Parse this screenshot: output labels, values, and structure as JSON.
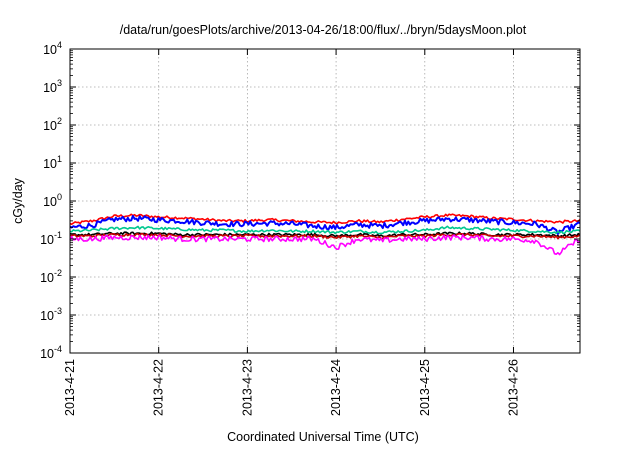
{
  "chart_data": {
    "type": "line",
    "title": "/data/run/goesPlots/archive/2013-04-26/18:00/flux/../bryn/5daysMoon.plot",
    "xlabel": "Coordinated Universal Time (UTC)",
    "ylabel": "cGy/day",
    "y_scale": "log",
    "ylim": [
      0.0001,
      10000
    ],
    "xlim": [
      "2013-04-21",
      "2013-04-26 18:00"
    ],
    "x_ticks": [
      "2013-4-21",
      "2013-4-22",
      "2013-4-23",
      "2013-4-24",
      "2013-4-25",
      "2013-4-26"
    ],
    "y_ticks": [
      {
        "base": "10",
        "exp": "-4",
        "value": 0.0001
      },
      {
        "base": "10",
        "exp": "-3",
        "value": 0.001
      },
      {
        "base": "10",
        "exp": "-2",
        "value": 0.01
      },
      {
        "base": "10",
        "exp": "-1",
        "value": 0.1
      },
      {
        "base": "10",
        "exp": "0",
        "value": 1
      },
      {
        "base": "10",
        "exp": "1",
        "value": 10
      },
      {
        "base": "10",
        "exp": "2",
        "value": 100
      },
      {
        "base": "10",
        "exp": "3",
        "value": 1000
      },
      {
        "base": "10",
        "exp": "4",
        "value": 10000
      }
    ],
    "grid": true,
    "legend": "none",
    "x": [
      "2013-04-21 00:00",
      "2013-04-21 06:00",
      "2013-04-21 12:00",
      "2013-04-21 18:00",
      "2013-04-22 00:00",
      "2013-04-22 06:00",
      "2013-04-22 12:00",
      "2013-04-22 18:00",
      "2013-04-23 00:00",
      "2013-04-23 06:00",
      "2013-04-23 12:00",
      "2013-04-23 18:00",
      "2013-04-24 00:00",
      "2013-04-24 06:00",
      "2013-04-24 12:00",
      "2013-04-24 18:00",
      "2013-04-25 00:00",
      "2013-04-25 06:00",
      "2013-04-25 12:00",
      "2013-04-25 18:00",
      "2013-04-26 00:00",
      "2013-04-26 06:00",
      "2013-04-26 12:00",
      "2013-04-26 18:00"
    ],
    "series": [
      {
        "color": "#ff0000",
        "values": [
          0.25,
          0.3,
          0.4,
          0.42,
          0.38,
          0.36,
          0.33,
          0.3,
          0.3,
          0.32,
          0.3,
          0.28,
          0.27,
          0.3,
          0.28,
          0.33,
          0.38,
          0.42,
          0.4,
          0.35,
          0.33,
          0.3,
          0.28,
          0.3
        ]
      },
      {
        "color": "#0000ff",
        "values": [
          0.2,
          0.23,
          0.33,
          0.35,
          0.32,
          0.3,
          0.27,
          0.25,
          0.25,
          0.26,
          0.25,
          0.22,
          0.2,
          0.24,
          0.22,
          0.27,
          0.3,
          0.34,
          0.32,
          0.29,
          0.27,
          0.25,
          0.15,
          0.25
        ]
      },
      {
        "color": "#00c890",
        "values": [
          0.16,
          0.17,
          0.19,
          0.2,
          0.19,
          0.18,
          0.17,
          0.17,
          0.16,
          0.17,
          0.16,
          0.16,
          0.15,
          0.16,
          0.15,
          0.16,
          0.17,
          0.2,
          0.19,
          0.18,
          0.17,
          0.16,
          0.15,
          0.16
        ]
      },
      {
        "color": "#000000",
        "values": [
          0.13,
          0.13,
          0.14,
          0.14,
          0.14,
          0.13,
          0.13,
          0.13,
          0.13,
          0.13,
          0.13,
          0.13,
          0.12,
          0.13,
          0.12,
          0.13,
          0.13,
          0.14,
          0.14,
          0.13,
          0.13,
          0.13,
          0.12,
          0.13
        ]
      },
      {
        "color": "#c80000",
        "values": [
          0.12,
          0.12,
          0.13,
          0.13,
          0.13,
          0.12,
          0.12,
          0.12,
          0.12,
          0.12,
          0.12,
          0.12,
          0.11,
          0.12,
          0.11,
          0.12,
          0.12,
          0.13,
          0.13,
          0.12,
          0.12,
          0.12,
          0.11,
          0.12
        ]
      },
      {
        "color": "#ff00ff",
        "values": [
          0.1,
          0.1,
          0.11,
          0.11,
          0.11,
          0.1,
          0.1,
          0.1,
          0.1,
          0.1,
          0.1,
          0.1,
          0.06,
          0.1,
          0.09,
          0.1,
          0.1,
          0.11,
          0.11,
          0.1,
          0.1,
          0.09,
          0.04,
          0.1
        ]
      }
    ]
  }
}
